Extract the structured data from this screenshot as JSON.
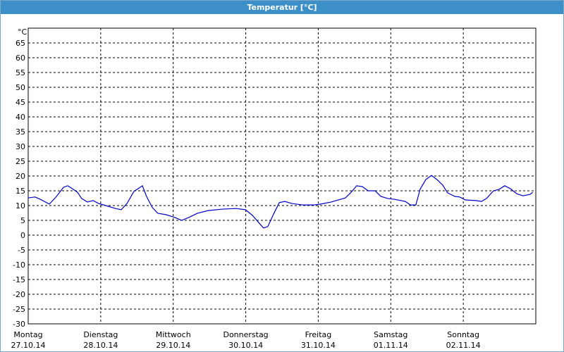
{
  "chart_data": {
    "type": "line",
    "title": "Temperatur [°C]",
    "y_unit": "°C",
    "xlim": [
      0,
      168
    ],
    "ylim": [
      -30,
      70
    ],
    "yticks": [
      -30,
      -25,
      -20,
      -15,
      -10,
      -5,
      0,
      5,
      10,
      15,
      20,
      25,
      30,
      35,
      40,
      45,
      50,
      55,
      60,
      65
    ],
    "xticks": [
      {
        "value": 0,
        "label": "Montag",
        "date": "27.10.14"
      },
      {
        "value": 24,
        "label": "Dienstag",
        "date": "28.10.14"
      },
      {
        "value": 48,
        "label": "Mittwoch",
        "date": "29.10.14"
      },
      {
        "value": 72,
        "label": "Donnerstag",
        "date": "30.10.14"
      },
      {
        "value": 96,
        "label": "Freitag",
        "date": "31.10.14"
      },
      {
        "value": 120,
        "label": "Samstag",
        "date": "01.11.14"
      },
      {
        "value": 144,
        "label": "Sonntag",
        "date": "02.11.14"
      }
    ],
    "grid": true,
    "series": [
      {
        "color": "#0000c8",
        "x": [
          0,
          2.3,
          4.2,
          7,
          9.3,
          11.7,
          13.1,
          14.9,
          16.3,
          17.7,
          19.6,
          21.5,
          23.3,
          25.7,
          28.9,
          30.8,
          32.7,
          35,
          37.8,
          39.2,
          41.1,
          42.9,
          45.7,
          48.5,
          50.8,
          53.2,
          56,
          59.5,
          64.2,
          68.8,
          71.9,
          74.2,
          76.5,
          77.9,
          79.3,
          81.2,
          83.1,
          84.9,
          87.3,
          91,
          94.5,
          96.8,
          100.3,
          105,
          106.9,
          108.7,
          110.6,
          112.5,
          114.8,
          116.7,
          119,
          121.3,
          124.8,
          126.5,
          128.3,
          129.7,
          131.6,
          133.5,
          135.3,
          137.2,
          138.8,
          141.2,
          142.8,
          144.7,
          148.2,
          150,
          151.7,
          154,
          155.9,
          157.7,
          159.6,
          161.7,
          163.8,
          166.1,
          167
        ],
        "values": [
          12.6,
          12.9,
          12,
          10.5,
          13,
          16.2,
          16.7,
          15.5,
          14.5,
          12.4,
          11.2,
          11.7,
          10.7,
          10,
          9,
          8.6,
          10.7,
          14.8,
          16.7,
          13,
          9.3,
          7.4,
          6.9,
          6,
          5,
          6,
          7.4,
          8.3,
          8.8,
          9,
          8.6,
          6.7,
          4,
          2.4,
          2.9,
          7.1,
          11,
          11.4,
          10.7,
          10.2,
          10.2,
          10.5,
          11.2,
          12.6,
          14.5,
          16.7,
          16.4,
          15,
          15,
          13.1,
          12.4,
          12.1,
          11.4,
          10.2,
          10.2,
          15.5,
          18.8,
          20.2,
          18.8,
          16.9,
          14.3,
          13.1,
          12.9,
          11.9,
          11.7,
          11.4,
          12.4,
          15,
          15.5,
          16.7,
          15.7,
          14,
          13.3,
          13.8,
          14.5
        ]
      }
    ]
  }
}
